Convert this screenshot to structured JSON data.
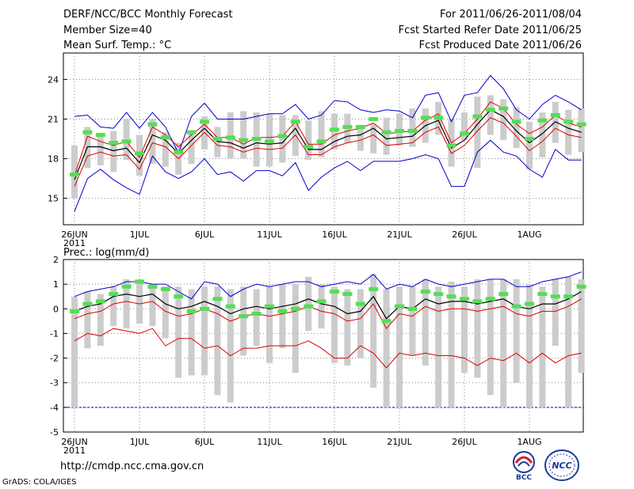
{
  "header": {
    "title": "DERF/NCC/BCC Monthly Forecast",
    "member_size": "Member Size=40",
    "panel1_label": "Mean Surf. Temp.: °C",
    "forecast_range": "For 2011/06/26-2011/08/04",
    "started_date": "Fcst Started Refer Date 2011/06/25",
    "produced_date": "Fcst Produced Date 2011/06/26"
  },
  "footer": {
    "url": "http://cmdp.ncc.cma.gov.cn",
    "grads_credit": "GrADS: COLA/IGES",
    "logo_left_text": "BCC",
    "logo_right_text": "NCC"
  },
  "colors": {
    "ensemble_mean": "#000000",
    "std_band": "#dd0000",
    "min_max": "#0000cc",
    "green_marker": "#55dd55",
    "member_bar": "#cccccc",
    "grid": "#888888"
  },
  "chart_data": [
    {
      "type": "line",
      "title": "Mean Surf. Temp.: °C",
      "ylabel": "°C",
      "xlabel": "",
      "ylim": [
        13,
        26
      ],
      "yticks": [
        15,
        18,
        21,
        24
      ],
      "grid": true,
      "days": 40,
      "xtick_days": [
        0,
        5,
        10,
        15,
        20,
        25,
        30,
        35
      ],
      "xtick_labels": [
        "26JUN",
        "1JUL",
        "6JUL",
        "11JUL",
        "16JUL",
        "21JUL",
        "26JUL",
        "1AUG"
      ],
      "xtick_year": "2011",
      "mean": [
        16.4,
        18.9,
        18.9,
        18.6,
        18.8,
        17.7,
        19.8,
        19.4,
        18.4,
        19.4,
        20.3,
        19.3,
        19.2,
        18.8,
        19.2,
        19.1,
        19.2,
        20.3,
        18.7,
        18.7,
        19.3,
        19.7,
        19.8,
        20.3,
        19.5,
        19.6,
        19.7,
        20.5,
        20.9,
        18.8,
        19.4,
        20.6,
        21.7,
        21.2,
        20.1,
        19.2,
        19.9,
        20.8,
        20.3,
        20.0
      ],
      "upper": [
        16.7,
        19.7,
        19.3,
        19.0,
        19.3,
        18.1,
        20.4,
        19.8,
        18.9,
        19.8,
        20.6,
        19.6,
        19.6,
        19.1,
        19.6,
        19.6,
        19.7,
        20.8,
        19.1,
        19.1,
        19.8,
        20.1,
        20.3,
        20.7,
        19.9,
        20.0,
        20.1,
        20.9,
        21.4,
        19.2,
        19.9,
        21.0,
        22.3,
        21.8,
        20.6,
        19.9,
        20.4,
        21.3,
        20.7,
        20.4
      ],
      "lower": [
        15.9,
        18.2,
        18.5,
        18.2,
        18.3,
        17.2,
        19.2,
        18.9,
        18.0,
        19.0,
        20.0,
        19.0,
        18.9,
        18.5,
        18.8,
        18.7,
        18.8,
        19.8,
        18.3,
        18.3,
        18.9,
        19.2,
        19.4,
        19.8,
        19.0,
        19.1,
        19.2,
        20.0,
        20.4,
        18.4,
        19.0,
        20.1,
        21.1,
        20.7,
        19.7,
        18.6,
        19.3,
        20.3,
        19.8,
        19.6
      ],
      "max": [
        21.2,
        21.3,
        20.4,
        20.3,
        21.5,
        20.3,
        21.5,
        20.4,
        18.4,
        21.2,
        22.2,
        21.0,
        21.0,
        21.0,
        21.2,
        21.4,
        21.4,
        22.1,
        21.0,
        21.3,
        22.4,
        22.3,
        21.7,
        21.5,
        21.7,
        21.6,
        21.1,
        22.8,
        23.0,
        20.8,
        22.8,
        23.0,
        24.3,
        23.3,
        21.7,
        21.0,
        22.1,
        22.8,
        22.3,
        21.7
      ],
      "min": [
        14.0,
        16.5,
        17.2,
        16.4,
        15.8,
        15.3,
        18.2,
        17.0,
        16.5,
        17.0,
        18.0,
        16.8,
        17.0,
        16.3,
        17.1,
        17.1,
        16.7,
        17.7,
        15.6,
        16.6,
        17.3,
        17.8,
        17.1,
        17.8,
        17.8,
        17.8,
        18.0,
        18.3,
        18.0,
        15.9,
        15.9,
        18.5,
        19.4,
        18.5,
        18.2,
        17.2,
        16.6,
        18.7,
        17.9,
        17.9
      ],
      "bar_top": [
        19.0,
        20.4,
        19.8,
        20.1,
        21.0,
        19.8,
        21.0,
        20.0,
        19.2,
        20.1,
        21.2,
        20.4,
        21.5,
        21.6,
        21.5,
        21.4,
        21.3,
        21.3,
        20.9,
        21.6,
        21.4,
        21.4,
        20.5,
        20.6,
        21.1,
        21.4,
        21.8,
        21.8,
        22.3,
        21.0,
        21.5,
        22.7,
        22.8,
        22.5,
        21.9,
        20.8,
        21.5,
        22.3,
        21.7,
        21.8
      ],
      "bar_bottom": [
        15.0,
        17.3,
        17.5,
        17.0,
        17.9,
        16.7,
        17.6,
        17.4,
        16.8,
        17.6,
        18.7,
        18.1,
        18.0,
        18.0,
        17.4,
        17.4,
        17.7,
        18.2,
        17.9,
        18.1,
        18.7,
        19.2,
        18.6,
        18.4,
        18.3,
        19.0,
        18.9,
        19.2,
        19.8,
        17.4,
        19.4,
        17.3,
        19.8,
        19.4,
        18.8,
        17.2,
        18.1,
        19.2,
        18.3,
        18.5
      ],
      "green_markers": [
        16.8,
        20.0,
        19.8,
        19.2,
        19.3,
        18.4,
        20.6,
        19.6,
        18.5,
        20.0,
        20.8,
        19.5,
        19.6,
        19.4,
        19.5,
        19.3,
        19.7,
        20.8,
        18.9,
        19.3,
        20.2,
        20.4,
        20.4,
        21.0,
        20.0,
        20.1,
        20.1,
        21.1,
        21.1,
        19.0,
        19.9,
        21.2,
        21.7,
        21.8,
        20.8,
        19.5,
        20.9,
        21.3,
        20.8,
        20.6
      ]
    },
    {
      "type": "line",
      "title": "Prec.: log(mm/d)",
      "ylabel": "log(mm/d)",
      "xlabel": "",
      "ylim": [
        -5,
        2
      ],
      "yticks": [
        -5,
        -4,
        -3,
        -2,
        -1,
        0,
        1,
        2
      ],
      "grid": true,
      "days": 40,
      "xtick_days": [
        0,
        5,
        10,
        15,
        20,
        25,
        30,
        35
      ],
      "xtick_labels": [
        "26JUN",
        "1JUL",
        "6JUL",
        "11JUL",
        "16JUL",
        "21JUL",
        "26JUL",
        "1AUG"
      ],
      "xtick_year": "2011",
      "floor_line": -4.0,
      "mean": [
        -0.1,
        0.1,
        0.2,
        0.5,
        0.6,
        0.5,
        0.6,
        0.2,
        0.0,
        0.1,
        0.3,
        0.1,
        -0.2,
        0.0,
        0.1,
        0.0,
        0.1,
        0.2,
        0.4,
        0.2,
        0.1,
        -0.2,
        -0.1,
        0.5,
        -0.4,
        0.1,
        0.0,
        0.4,
        0.2,
        0.3,
        0.3,
        0.2,
        0.3,
        0.4,
        0.1,
        0.0,
        0.2,
        0.2,
        0.4,
        0.7
      ],
      "upper": [
        -0.4,
        -0.2,
        -0.1,
        0.2,
        0.3,
        0.2,
        0.3,
        -0.1,
        -0.3,
        -0.2,
        0.0,
        -0.2,
        -0.5,
        -0.3,
        -0.2,
        -0.3,
        -0.2,
        -0.1,
        0.1,
        -0.1,
        -0.2,
        -0.5,
        -0.4,
        0.2,
        -0.8,
        -0.2,
        -0.3,
        0.1,
        -0.1,
        0.0,
        0.0,
        -0.1,
        0.0,
        0.1,
        -0.2,
        -0.3,
        -0.1,
        -0.1,
        0.1,
        0.4
      ],
      "lower": [
        -1.3,
        -1.0,
        -1.1,
        -0.8,
        -0.9,
        -1.0,
        -0.8,
        -1.5,
        -1.2,
        -1.2,
        -1.6,
        -1.5,
        -1.9,
        -1.6,
        -1.6,
        -1.5,
        -1.5,
        -1.5,
        -1.3,
        -1.6,
        -2.0,
        -2.0,
        -1.5,
        -1.8,
        -2.4,
        -1.8,
        -1.9,
        -1.8,
        -1.9,
        -1.9,
        -2.0,
        -2.3,
        -2.0,
        -2.1,
        -1.8,
        -2.2,
        -1.8,
        -2.2,
        -1.9,
        -1.8
      ],
      "max": [
        0.5,
        0.7,
        0.8,
        0.9,
        1.1,
        1.1,
        1.0,
        1.0,
        0.7,
        0.4,
        1.1,
        1.0,
        0.5,
        0.8,
        1.0,
        0.9,
        1.0,
        1.1,
        1.1,
        0.9,
        1.0,
        1.1,
        1.0,
        1.4,
        0.8,
        1.0,
        0.9,
        1.2,
        1.0,
        0.9,
        1.0,
        1.1,
        1.2,
        1.2,
        0.9,
        0.9,
        1.1,
        1.2,
        1.3,
        1.5
      ],
      "bar_top": [
        0.5,
        0.7,
        0.6,
        0.9,
        1.2,
        1.2,
        1.0,
        0.9,
        0.9,
        0.8,
        0.9,
        0.9,
        0.8,
        0.9,
        0.8,
        0.9,
        1.0,
        1.0,
        1.3,
        1.0,
        0.9,
        0.8,
        0.8,
        1.4,
        0.8,
        0.9,
        0.9,
        1.2,
        0.9,
        1.1,
        0.9,
        1.2,
        1.2,
        1.2,
        1.2,
        1.0,
        0.9,
        1.2,
        1.3,
        1.2
      ],
      "bar_bottom": [
        -4.0,
        -1.6,
        -1.5,
        -0.7,
        -0.8,
        -0.6,
        -0.7,
        -1.2,
        -2.8,
        -2.7,
        -2.7,
        -3.5,
        -3.8,
        -1.9,
        -1.5,
        -2.2,
        -1.6,
        -2.6,
        -0.9,
        -0.8,
        -2.2,
        -2.3,
        -2.0,
        -3.2,
        -4.0,
        -4.0,
        -1.9,
        -2.3,
        -4.0,
        -4.0,
        -2.6,
        -2.8,
        -3.5,
        -4.0,
        -3.0,
        -4.0,
        -4.0,
        -1.5,
        -4.0,
        -2.6
      ],
      "green_markers": [
        -0.1,
        0.2,
        0.3,
        0.6,
        0.9,
        1.1,
        0.9,
        0.8,
        0.5,
        -0.1,
        0.0,
        0.4,
        0.1,
        -0.3,
        -0.2,
        0.1,
        -0.1,
        0.0,
        0.1,
        0.3,
        0.7,
        0.6,
        0.2,
        0.8,
        -0.5,
        0.1,
        0.0,
        0.7,
        0.6,
        0.5,
        0.4,
        0.3,
        0.4,
        0.6,
        0.1,
        0.2,
        0.6,
        0.5,
        0.5,
        0.9
      ]
    }
  ]
}
